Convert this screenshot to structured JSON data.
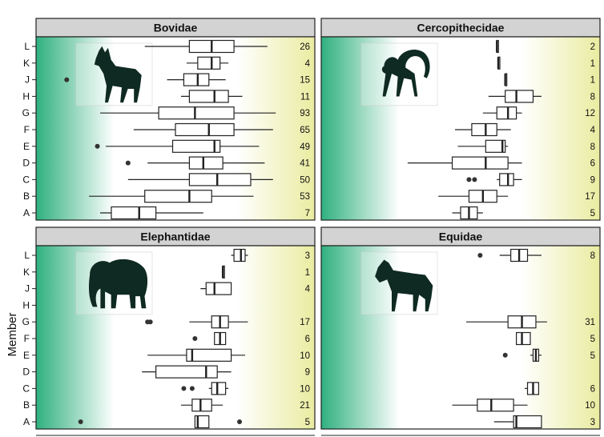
{
  "chart_data": {
    "type": "boxplot",
    "ylabel": "Member",
    "categories": [
      "A",
      "B",
      "C",
      "D",
      "E",
      "F",
      "G",
      "H",
      "J",
      "K",
      "L"
    ],
    "colors": {
      "left": "#2fb07f",
      "mid": "#ffffff",
      "right": "#e9eca0",
      "header": "#d3d3d3",
      "box_fill": "#ffffff",
      "stroke": "#222222"
    },
    "panels": [
      {
        "title": "Bovidae",
        "icon": "antelope-icon",
        "groups": [
          {
            "member": "L",
            "n": "26",
            "whisker_low": 0.39,
            "q1": 0.55,
            "median": 0.63,
            "q3": 0.71,
            "whisker_high": 0.83,
            "outliers": []
          },
          {
            "member": "K",
            "n": "4",
            "whisker_low": 0.54,
            "q1": 0.58,
            "median": 0.63,
            "q3": 0.66,
            "whisker_high": 0.69,
            "outliers": []
          },
          {
            "member": "J",
            "n": "15",
            "whisker_low": 0.47,
            "q1": 0.53,
            "median": 0.58,
            "q3": 0.62,
            "whisker_high": 0.68,
            "outliers": [
              0.11
            ]
          },
          {
            "member": "H",
            "n": "11",
            "whisker_low": 0.52,
            "q1": 0.55,
            "median": 0.64,
            "q3": 0.69,
            "whisker_high": 0.74,
            "outliers": []
          },
          {
            "member": "G",
            "n": "93",
            "whisker_low": 0.23,
            "q1": 0.44,
            "median": 0.57,
            "q3": 0.71,
            "whisker_high": 0.86,
            "outliers": []
          },
          {
            "member": "F",
            "n": "65",
            "whisker_low": 0.35,
            "q1": 0.5,
            "median": 0.62,
            "q3": 0.71,
            "whisker_high": 0.85,
            "outliers": []
          },
          {
            "member": "E",
            "n": "49",
            "whisker_low": 0.25,
            "q1": 0.49,
            "median": 0.64,
            "q3": 0.66,
            "whisker_high": 0.8,
            "outliers": [
              0.22
            ]
          },
          {
            "member": "D",
            "n": "41",
            "whisker_low": 0.4,
            "q1": 0.55,
            "median": 0.6,
            "q3": 0.67,
            "whisker_high": 0.82,
            "outliers": [
              0.33
            ]
          },
          {
            "member": "C",
            "n": "50",
            "whisker_low": 0.33,
            "q1": 0.55,
            "median": 0.65,
            "q3": 0.77,
            "whisker_high": 0.85,
            "outliers": []
          },
          {
            "member": "B",
            "n": "53",
            "whisker_low": 0.19,
            "q1": 0.39,
            "median": 0.55,
            "q3": 0.63,
            "whisker_high": 0.78,
            "outliers": []
          },
          {
            "member": "A",
            "n": "7",
            "whisker_low": 0.23,
            "q1": 0.27,
            "median": 0.37,
            "q3": 0.43,
            "whisker_high": 0.6,
            "outliers": []
          }
        ]
      },
      {
        "title": "Cercopithecidae",
        "icon": "monkey-icon",
        "groups": [
          {
            "member": "L",
            "n": "2",
            "whisker_low": 0.63,
            "q1": 0.63,
            "median": 0.63,
            "q3": 0.635,
            "whisker_high": 0.635,
            "outliers": []
          },
          {
            "member": "K",
            "n": "1",
            "whisker_low": 0.635,
            "q1": 0.635,
            "median": 0.635,
            "q3": 0.635,
            "whisker_high": 0.635,
            "outliers": []
          },
          {
            "member": "J",
            "n": "1",
            "whisker_low": 0.66,
            "q1": 0.66,
            "median": 0.66,
            "q3": 0.66,
            "whisker_high": 0.66,
            "outliers": []
          },
          {
            "member": "H",
            "n": "8",
            "whisker_low": 0.6,
            "q1": 0.66,
            "median": 0.7,
            "q3": 0.76,
            "whisker_high": 0.79,
            "outliers": []
          },
          {
            "member": "G",
            "n": "12",
            "whisker_low": 0.58,
            "q1": 0.63,
            "median": 0.67,
            "q3": 0.7,
            "whisker_high": 0.72,
            "outliers": []
          },
          {
            "member": "F",
            "n": "4",
            "whisker_low": 0.48,
            "q1": 0.54,
            "median": 0.59,
            "q3": 0.63,
            "whisker_high": 0.68,
            "outliers": []
          },
          {
            "member": "E",
            "n": "8",
            "whisker_low": 0.49,
            "q1": 0.59,
            "median": 0.65,
            "q3": 0.66,
            "whisker_high": 0.67,
            "outliers": []
          },
          {
            "member": "D",
            "n": "6",
            "whisker_low": 0.31,
            "q1": 0.47,
            "median": 0.59,
            "q3": 0.67,
            "whisker_high": 0.72,
            "outliers": []
          },
          {
            "member": "C",
            "n": "9",
            "whisker_low": 0.63,
            "q1": 0.64,
            "median": 0.67,
            "q3": 0.69,
            "whisker_high": 0.72,
            "outliers": [
              0.53,
              0.55
            ]
          },
          {
            "member": "B",
            "n": "17",
            "whisker_low": 0.42,
            "q1": 0.53,
            "median": 0.58,
            "q3": 0.63,
            "whisker_high": 0.67,
            "outliers": []
          },
          {
            "member": "A",
            "n": "5",
            "whisker_low": 0.47,
            "q1": 0.5,
            "median": 0.53,
            "q3": 0.56,
            "whisker_high": 0.58,
            "outliers": []
          }
        ]
      },
      {
        "title": "Elephantidae",
        "icon": "elephant-icon",
        "groups": [
          {
            "member": "L",
            "n": "3",
            "whisker_low": 0.7,
            "q1": 0.71,
            "median": 0.735,
            "q3": 0.75,
            "whisker_high": 0.76,
            "outliers": []
          },
          {
            "member": "K",
            "n": "1",
            "whisker_low": 0.67,
            "q1": 0.67,
            "median": 0.67,
            "q3": 0.67,
            "whisker_high": 0.67,
            "outliers": []
          },
          {
            "member": "J",
            "n": "4",
            "whisker_low": 0.59,
            "q1": 0.61,
            "median": 0.64,
            "q3": 0.7,
            "whisker_high": 0.7,
            "outliers": []
          },
          {
            "member": "H",
            "n": "",
            "whisker_low": null,
            "q1": null,
            "median": null,
            "q3": null,
            "whisker_high": null,
            "outliers": []
          },
          {
            "member": "G",
            "n": "17",
            "whisker_low": 0.55,
            "q1": 0.63,
            "median": 0.66,
            "q3": 0.69,
            "whisker_high": 0.76,
            "outliers": [
              0.4,
              0.41
            ]
          },
          {
            "member": "F",
            "n": "6",
            "whisker_low": 0.64,
            "q1": 0.64,
            "median": 0.66,
            "q3": 0.68,
            "whisker_high": 0.68,
            "outliers": [
              0.57
            ]
          },
          {
            "member": "E",
            "n": "10",
            "whisker_low": 0.4,
            "q1": 0.54,
            "median": 0.56,
            "q3": 0.7,
            "whisker_high": 0.75,
            "outliers": []
          },
          {
            "member": "D",
            "n": "9",
            "whisker_low": 0.38,
            "q1": 0.43,
            "median": 0.61,
            "q3": 0.65,
            "whisker_high": 0.7,
            "outliers": []
          },
          {
            "member": "C",
            "n": "10",
            "whisker_low": 0.62,
            "q1": 0.63,
            "median": 0.65,
            "q3": 0.68,
            "whisker_high": 0.69,
            "outliers": [
              0.53,
              0.56
            ]
          },
          {
            "member": "B",
            "n": "21",
            "whisker_low": 0.52,
            "q1": 0.56,
            "median": 0.59,
            "q3": 0.63,
            "whisker_high": 0.67,
            "outliers": []
          },
          {
            "member": "A",
            "n": "5",
            "whisker_low": 0.57,
            "q1": 0.57,
            "median": 0.58,
            "q3": 0.62,
            "whisker_high": 0.62,
            "outliers": [
              0.16,
              0.73
            ]
          }
        ]
      },
      {
        "title": "Equidae",
        "icon": "horse-icon",
        "groups": [
          {
            "member": "L",
            "n": "8",
            "whisker_low": 0.64,
            "q1": 0.68,
            "median": 0.71,
            "q3": 0.74,
            "whisker_high": 0.79,
            "outliers": [
              0.57
            ]
          },
          {
            "member": "K",
            "n": "",
            "whisker_low": null,
            "q1": null,
            "median": null,
            "q3": null,
            "whisker_high": null,
            "outliers": []
          },
          {
            "member": "J",
            "n": "",
            "whisker_low": null,
            "q1": null,
            "median": null,
            "q3": null,
            "whisker_high": null,
            "outliers": []
          },
          {
            "member": "H",
            "n": "",
            "whisker_low": null,
            "q1": null,
            "median": null,
            "q3": null,
            "whisker_high": null,
            "outliers": []
          },
          {
            "member": "G",
            "n": "31",
            "whisker_low": 0.52,
            "q1": 0.67,
            "median": 0.72,
            "q3": 0.77,
            "whisker_high": 0.81,
            "outliers": []
          },
          {
            "member": "F",
            "n": "5",
            "whisker_low": 0.7,
            "q1": 0.7,
            "median": 0.72,
            "q3": 0.75,
            "whisker_high": 0.75,
            "outliers": []
          },
          {
            "member": "E",
            "n": "5",
            "whisker_low": 0.75,
            "q1": 0.76,
            "median": 0.77,
            "q3": 0.78,
            "whisker_high": 0.79,
            "outliers": [
              0.66
            ]
          },
          {
            "member": "D",
            "n": "",
            "whisker_low": null,
            "q1": null,
            "median": null,
            "q3": null,
            "whisker_high": null,
            "outliers": []
          },
          {
            "member": "C",
            "n": "6",
            "whisker_low": 0.73,
            "q1": 0.74,
            "median": 0.76,
            "q3": 0.78,
            "whisker_high": 0.78,
            "outliers": []
          },
          {
            "member": "B",
            "n": "10",
            "whisker_low": 0.47,
            "q1": 0.56,
            "median": 0.61,
            "q3": 0.69,
            "whisker_high": 0.74,
            "outliers": []
          },
          {
            "member": "A",
            "n": "3",
            "whisker_low": 0.62,
            "q1": 0.69,
            "median": 0.7,
            "q3": 0.79,
            "whisker_high": 0.79,
            "outliers": []
          }
        ]
      }
    ]
  }
}
